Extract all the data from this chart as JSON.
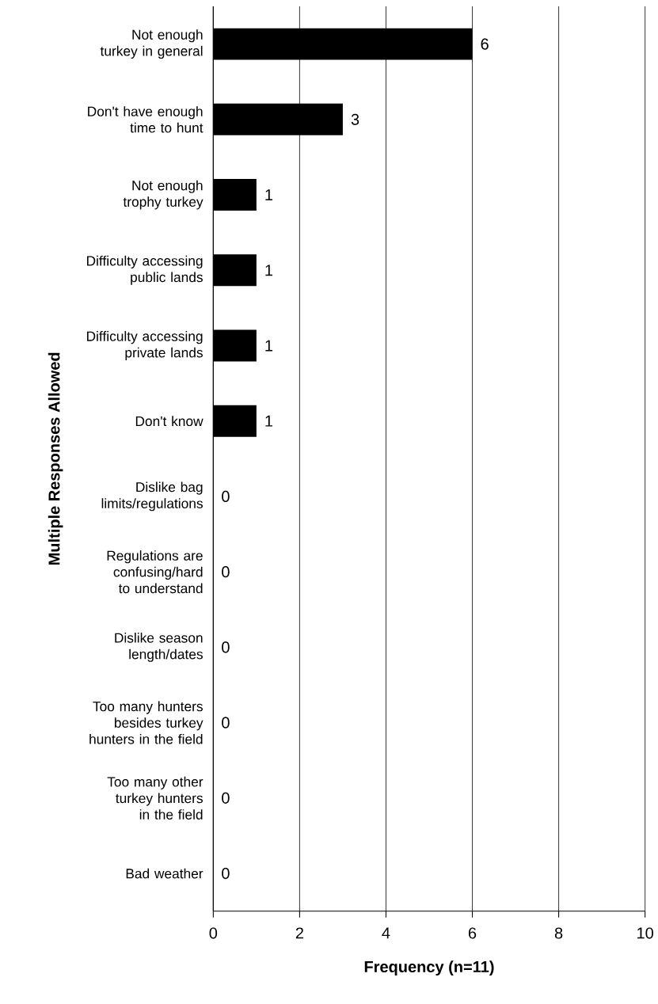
{
  "chart_data": {
    "type": "bar",
    "orientation": "horizontal",
    "xlabel": "Frequency (n=11)",
    "ylabel": "Multiple Responses Allowed",
    "categories": [
      "Not enough turkey in general",
      "Don't have enough time to hunt",
      "Not enough trophy turkey",
      "Difficulty accessing public lands",
      "Difficulty accessing private lands",
      "Don't know",
      "Dislike bag limits/regulations",
      "Regulations are confusing/hard to understand",
      "Dislike season length/dates",
      "Too many hunters besides turkey hunters in the field",
      "Too many other turkey hunters in the field",
      "Bad weather"
    ],
    "values": [
      6,
      3,
      1,
      1,
      1,
      1,
      0,
      0,
      0,
      0,
      0,
      0
    ],
    "color": "#000000",
    "xlim": [
      0,
      10
    ],
    "xticks": [
      0,
      2,
      4,
      6,
      8,
      10
    ],
    "grid": "x",
    "data_labels": true
  }
}
